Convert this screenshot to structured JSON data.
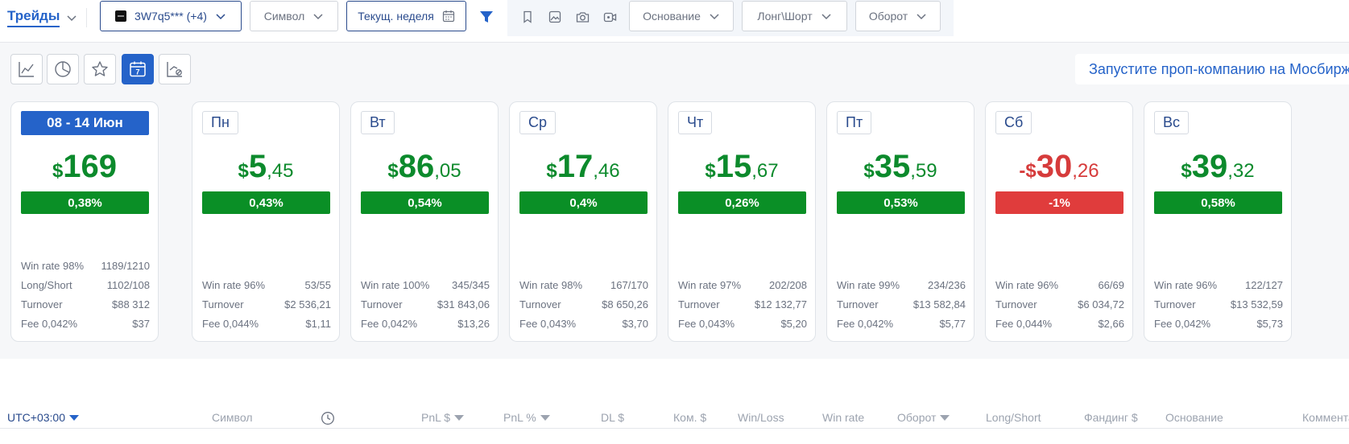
{
  "toolbar": {
    "trades_label": "Трейды",
    "account_label": "3W7q5*** (+4)",
    "symbol_label": "Символ",
    "period_label": "Текущ. неделя",
    "reason_label": "Основание",
    "longshort_label": "Лонг\\Шорт",
    "turnover_label": "Оборот",
    "icons": [
      "filter-icon",
      "bookmark-icon",
      "image-icon",
      "camera-icon",
      "video-icon"
    ]
  },
  "views": {
    "items": [
      "line-chart-icon",
      "pie-chart-icon",
      "star-icon",
      "calendar-icon",
      "chart-settings-icon"
    ],
    "active": "calendar-icon",
    "calendar_day": "7"
  },
  "promo": {
    "text": "Запустите проп-компанию на Мосбирже"
  },
  "week_card": {
    "label": "08 - 14 Июн",
    "currency": "$",
    "int": "169",
    "dec": "",
    "pct": "0,38%",
    "stats": [
      {
        "label": "Win rate 98%",
        "value": "1189/1210"
      },
      {
        "label": "Long/Short",
        "value": "1102/108"
      },
      {
        "label": "Turnover",
        "value": "$88 312"
      },
      {
        "label": "Fee 0,042%",
        "value": "$37"
      }
    ]
  },
  "days": [
    {
      "day": "Пн",
      "sign": "",
      "currency": "$",
      "int": "5",
      "dec": ",45",
      "pct": "0,43%",
      "positive": true,
      "stats": [
        {
          "label": "Win rate 96%",
          "value": "53/55"
        },
        {
          "label": "Turnover",
          "value": "$2 536,21"
        },
        {
          "label": "Fee 0,044%",
          "value": "$1,11"
        }
      ]
    },
    {
      "day": "Вт",
      "sign": "",
      "currency": "$",
      "int": "86",
      "dec": ",05",
      "pct": "0,54%",
      "positive": true,
      "stats": [
        {
          "label": "Win rate 100%",
          "value": "345/345"
        },
        {
          "label": "Turnover",
          "value": "$31 843,06"
        },
        {
          "label": "Fee 0,042%",
          "value": "$13,26"
        }
      ]
    },
    {
      "day": "Ср",
      "sign": "",
      "currency": "$",
      "int": "17",
      "dec": ",46",
      "pct": "0,4%",
      "positive": true,
      "stats": [
        {
          "label": "Win rate 98%",
          "value": "167/170"
        },
        {
          "label": "Turnover",
          "value": "$8 650,26"
        },
        {
          "label": "Fee 0,043%",
          "value": "$3,70"
        }
      ]
    },
    {
      "day": "Чт",
      "sign": "",
      "currency": "$",
      "int": "15",
      "dec": ",67",
      "pct": "0,26%",
      "positive": true,
      "stats": [
        {
          "label": "Win rate 97%",
          "value": "202/208"
        },
        {
          "label": "Turnover",
          "value": "$12 132,77"
        },
        {
          "label": "Fee 0,043%",
          "value": "$5,20"
        }
      ]
    },
    {
      "day": "Пт",
      "sign": "",
      "currency": "$",
      "int": "35",
      "dec": ",59",
      "pct": "0,53%",
      "positive": true,
      "stats": [
        {
          "label": "Win rate 99%",
          "value": "234/236"
        },
        {
          "label": "Turnover",
          "value": "$13 582,84"
        },
        {
          "label": "Fee 0,042%",
          "value": "$5,77"
        }
      ]
    },
    {
      "day": "Сб",
      "sign": "-",
      "currency": "$",
      "int": "30",
      "dec": ",26",
      "pct": "-1%",
      "positive": false,
      "stats": [
        {
          "label": "Win rate 96%",
          "value": "66/69"
        },
        {
          "label": "Turnover",
          "value": "$6 034,72"
        },
        {
          "label": "Fee 0,044%",
          "value": "$2,66"
        }
      ]
    },
    {
      "day": "Вс",
      "sign": "",
      "currency": "$",
      "int": "39",
      "dec": ",32",
      "pct": "0,58%",
      "positive": true,
      "stats": [
        {
          "label": "Win rate 96%",
          "value": "122/127"
        },
        {
          "label": "Turnover",
          "value": "$13 532,59"
        },
        {
          "label": "Fee 0,042%",
          "value": "$5,73"
        }
      ]
    }
  ],
  "table": {
    "timezone": "UTC+03:00",
    "columns": {
      "symbol": "Символ",
      "pnl": "PnL $",
      "pnl_pct": "PnL %",
      "dl": "DL $",
      "fee": "Ком. $",
      "winloss": "Win/Loss",
      "winrate": "Win rate",
      "turnover": "Оборот",
      "longshort": "Long/Short",
      "funding": "Фандинг $",
      "reason": "Основание",
      "comment": "Комментарий"
    }
  },
  "colors": {
    "accent": "#2563c9",
    "positive": "#0a8f26",
    "negative": "#e03c3c"
  }
}
